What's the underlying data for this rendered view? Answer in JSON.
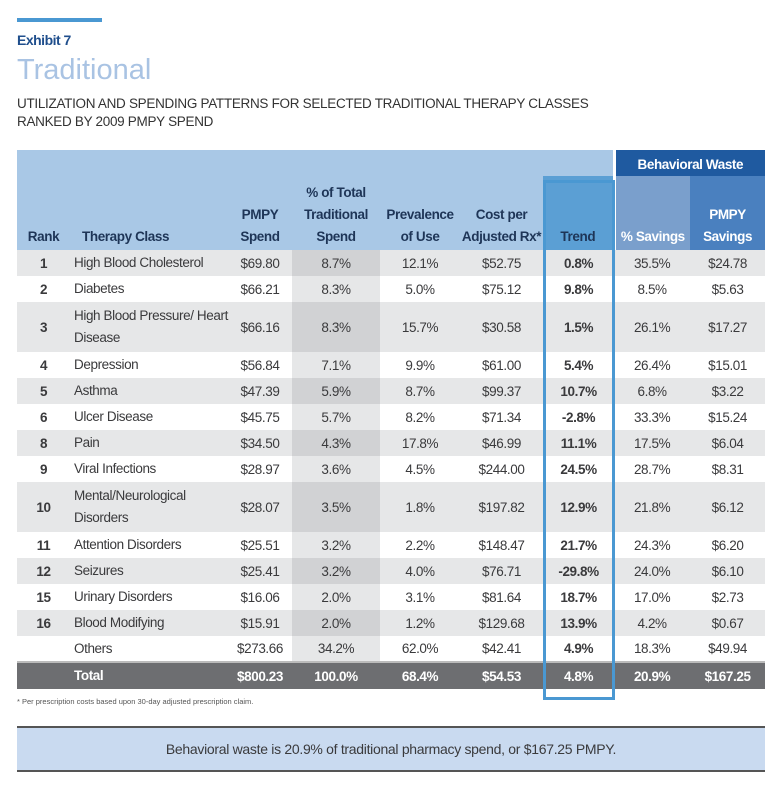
{
  "header": {
    "exhibit": "Exhibit 7",
    "title": "Traditional",
    "subtitle_line1": "UTILIZATION AND SPENDING PATTERNS FOR SELECTED TRADITIONAL THERAPY CLASSES",
    "subtitle_line2": "RANKED BY 2009 PMPY SPEND"
  },
  "table": {
    "group_header": "Behavioral Waste",
    "columns": [
      "Rank",
      "Therapy Class",
      "PMPY Spend",
      "% of Total Traditional Spend",
      "Prevalence of Use",
      "Cost per Adjusted Rx*",
      "Trend",
      "% Savings",
      "PMPY Savings"
    ],
    "rows": [
      [
        "1",
        "High Blood Cholesterol",
        "$69.80",
        "8.7%",
        "12.1%",
        "$52.75",
        "0.8%",
        "35.5%",
        "$24.78"
      ],
      [
        "2",
        "Diabetes",
        "$66.21",
        "8.3%",
        "5.0%",
        "$75.12",
        "9.8%",
        "8.5%",
        "$5.63"
      ],
      [
        "3",
        "High Blood Pressure/ Heart Disease",
        "$66.16",
        "8.3%",
        "15.7%",
        "$30.58",
        "1.5%",
        "26.1%",
        "$17.27"
      ],
      [
        "4",
        "Depression",
        "$56.84",
        "7.1%",
        "9.9%",
        "$61.00",
        "5.4%",
        "26.4%",
        "$15.01"
      ],
      [
        "5",
        "Asthma",
        "$47.39",
        "5.9%",
        "8.7%",
        "$99.37",
        "10.7%",
        "6.8%",
        "$3.22"
      ],
      [
        "6",
        "Ulcer Disease",
        "$45.75",
        "5.7%",
        "8.2%",
        "$71.34",
        "-2.8%",
        "33.3%",
        "$15.24"
      ],
      [
        "8",
        "Pain",
        "$34.50",
        "4.3%",
        "17.8%",
        "$46.99",
        "11.1%",
        "17.5%",
        "$6.04"
      ],
      [
        "9",
        "Viral Infections",
        "$28.97",
        "3.6%",
        "4.5%",
        "$244.00",
        "24.5%",
        "28.7%",
        "$8.31"
      ],
      [
        "10",
        "Mental/Neurological Disorders",
        "$28.07",
        "3.5%",
        "1.8%",
        "$197.82",
        "12.9%",
        "21.8%",
        "$6.12"
      ],
      [
        "11",
        "Attention Disorders",
        "$25.51",
        "3.2%",
        "2.2%",
        "$148.47",
        "21.7%",
        "24.3%",
        "$6.20"
      ],
      [
        "12",
        "Seizures",
        "$25.41",
        "3.2%",
        "4.0%",
        "$76.71",
        "-29.8%",
        "24.0%",
        "$6.10"
      ],
      [
        "15",
        "Urinary Disorders",
        "$16.06",
        "2.0%",
        "3.1%",
        "$81.64",
        "18.7%",
        "17.0%",
        "$2.73"
      ],
      [
        "16",
        "Blood Modifying",
        "$15.91",
        "2.0%",
        "1.2%",
        "$129.68",
        "13.9%",
        "4.2%",
        "$0.67"
      ],
      [
        "",
        "Others",
        "$273.66",
        "34.2%",
        "62.0%",
        "$42.41",
        "4.9%",
        "18.3%",
        "$49.94"
      ]
    ],
    "total": [
      "",
      "Total",
      "$800.23",
      "100.0%",
      "68.4%",
      "$54.53",
      "4.8%",
      "20.9%",
      "$167.25"
    ]
  },
  "footnote": "* Per prescription costs based upon 30-day adjusted prescription claim.",
  "summary": "Behavioral waste is 20.9% of traditional pharmacy spend, or $167.25 PMPY.",
  "colors": {
    "header_bg": "#a9c8e6",
    "behavioral_waste": "#1f5aa0",
    "trend_outline": "#4a98d2",
    "total_row": "#6d6e71"
  }
}
